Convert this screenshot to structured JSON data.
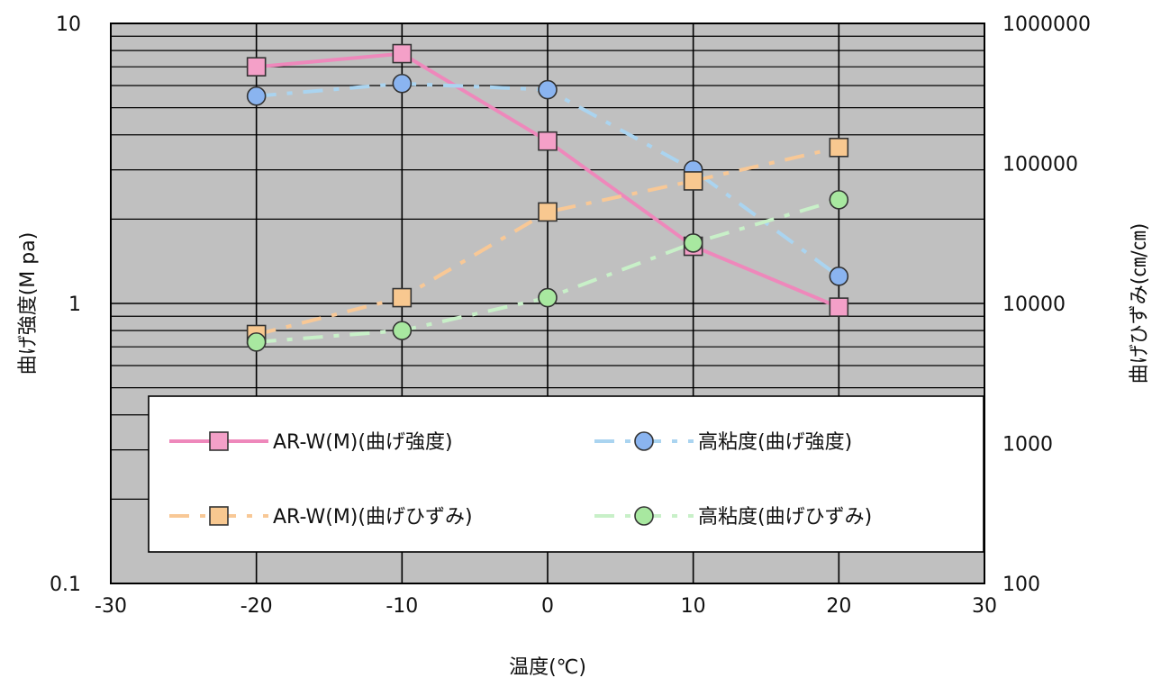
{
  "chart_data": {
    "type": "line",
    "title": "",
    "xlabel": "温度(℃)",
    "ylabel_left": "曲げ強度(M pa)",
    "ylabel_right": "曲げひずみ(㎝/㎝)",
    "xlim": [
      -30,
      30
    ],
    "xticks": [
      "-30",
      "-20",
      "-10",
      "0",
      "10",
      "20",
      "30"
    ],
    "ylim_left": [
      0.1,
      10
    ],
    "yticks_left": [
      "0.1",
      "1",
      "10"
    ],
    "ylim_right": [
      100,
      1000000
    ],
    "yticks_right": [
      "100",
      "1000",
      "10000",
      "100000",
      "1000000"
    ],
    "log_scale": true,
    "grid": true,
    "legend_position": "inside-bottom",
    "x": [
      -20,
      -10,
      0,
      10,
      20
    ],
    "series": [
      {
        "name": "AR-W(M)(曲げ強度)",
        "axis": "left",
        "values": [
          7.0,
          7.8,
          3.8,
          1.6,
          0.97
        ],
        "color": "#ee88bb",
        "marker": "square",
        "marker_fill": "#f4a0c8",
        "dash": false
      },
      {
        "name": "高粘度(曲げ強度)",
        "axis": "left",
        "values": [
          5.5,
          6.1,
          5.8,
          3.0,
          1.25
        ],
        "color": "#aad4f0",
        "marker": "circle",
        "marker_fill": "#8ab4f0",
        "dash": true
      },
      {
        "name": "AR-W(M)(曲げひずみ)",
        "axis": "right",
        "values": [
          6000,
          11000,
          45000,
          75000,
          130000
        ],
        "color": "#f8c896",
        "marker": "square",
        "marker_fill": "#f8c890",
        "dash": true
      },
      {
        "name": "高粘度(曲げひずみ)",
        "axis": "right",
        "values": [
          5300,
          6400,
          11000,
          27000,
          55000
        ],
        "color": "#c8f0c8",
        "marker": "circle",
        "marker_fill": "#a8e8a0",
        "dash": true
      }
    ]
  }
}
